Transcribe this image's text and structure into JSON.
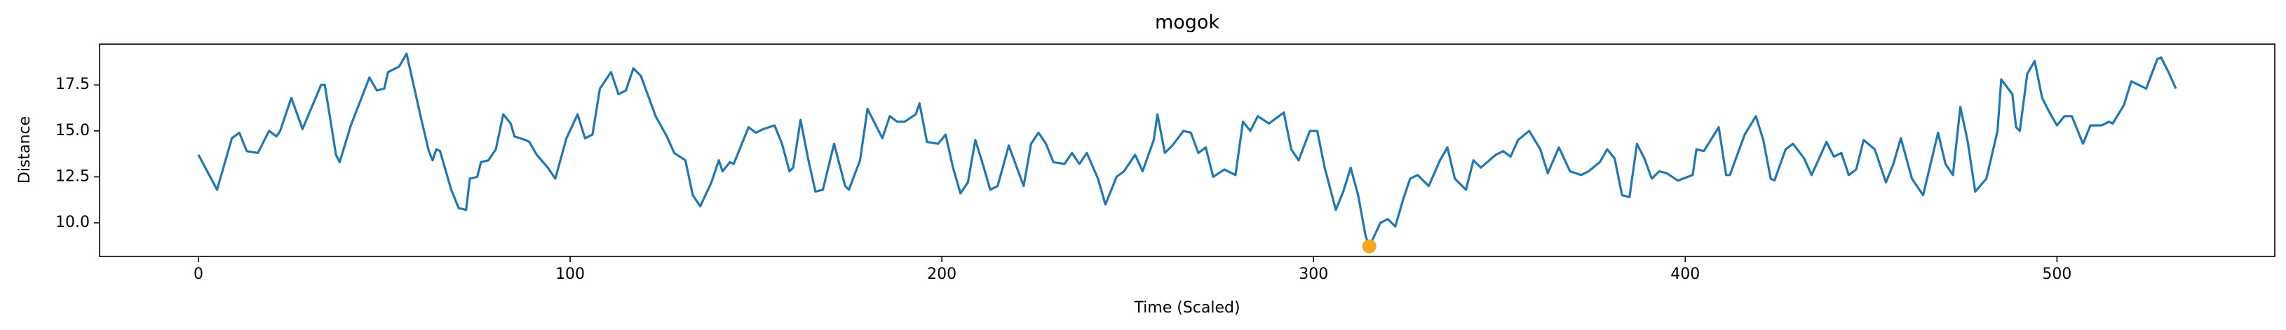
{
  "chart_data": {
    "type": "line",
    "title": "mogok",
    "x_label": "Time (Scaled)",
    "y_label": "Distance",
    "x": [
      0,
      5,
      9,
      11,
      13,
      16,
      19,
      21,
      22,
      25,
      28,
      33,
      34,
      37,
      38,
      41,
      46,
      48,
      50,
      51,
      54,
      56,
      60,
      62,
      63,
      64,
      65,
      68,
      70,
      72,
      73,
      75,
      76,
      78,
      80,
      82,
      84,
      85,
      88,
      89,
      91,
      94,
      96,
      99,
      102,
      104,
      106,
      108,
      111,
      113,
      115,
      117,
      119,
      123,
      126,
      128,
      131,
      133,
      135,
      138,
      140,
      141,
      143,
      144,
      148,
      150,
      152,
      155,
      157,
      159,
      160,
      162,
      164,
      166,
      168,
      171,
      174,
      175,
      178,
      180,
      184,
      186,
      188,
      190,
      193,
      194,
      196,
      199,
      201,
      203,
      205,
      207,
      209,
      211,
      213,
      215,
      218,
      222,
      224,
      226,
      228,
      230,
      233,
      235,
      237,
      239,
      242,
      244,
      247,
      249,
      252,
      254,
      257,
      258,
      260,
      262,
      265,
      267,
      269,
      271,
      273,
      276,
      279,
      281,
      283,
      285,
      288,
      292,
      294,
      296,
      299,
      301,
      303,
      306,
      308,
      310,
      312,
      314,
      315,
      318,
      320,
      322,
      324,
      326,
      328,
      331,
      334,
      336,
      338,
      341,
      343,
      345,
      349,
      351,
      353,
      355,
      358,
      361,
      363,
      366,
      369,
      372,
      374,
      377,
      379,
      381,
      383,
      385,
      387,
      389,
      391,
      393,
      395,
      398,
      402,
      403,
      405,
      409,
      411,
      412,
      416,
      419,
      421,
      423,
      424,
      427,
      429,
      432,
      434,
      438,
      440,
      442,
      444,
      446,
      448,
      451,
      454,
      456,
      458,
      461,
      464,
      468,
      470,
      472,
      474,
      476,
      478,
      481,
      484,
      485,
      488,
      489,
      490,
      492,
      494,
      496,
      498,
      500,
      502,
      504,
      507,
      509,
      512,
      514,
      515,
      518,
      520,
      522,
      524,
      527,
      528,
      530,
      532
    ],
    "values": [
      13.7,
      11.8,
      14.6,
      14.9,
      13.9,
      13.8,
      15.0,
      14.7,
      15.0,
      16.8,
      15.1,
      17.5,
      17.5,
      13.7,
      13.3,
      15.3,
      17.9,
      17.2,
      17.3,
      18.2,
      18.5,
      19.2,
      15.6,
      13.9,
      13.4,
      14.0,
      13.9,
      11.8,
      10.8,
      10.7,
      12.4,
      12.5,
      13.3,
      13.4,
      14.0,
      15.9,
      15.4,
      14.7,
      14.5,
      14.4,
      13.7,
      13.0,
      12.4,
      14.6,
      15.9,
      14.6,
      14.8,
      17.3,
      18.2,
      17.0,
      17.2,
      18.4,
      18.0,
      15.8,
      14.7,
      13.8,
      13.4,
      11.5,
      10.9,
      12.2,
      13.4,
      12.8,
      13.3,
      13.2,
      15.2,
      14.9,
      15.1,
      15.3,
      14.3,
      12.8,
      13.0,
      15.6,
      13.5,
      11.7,
      11.8,
      14.3,
      12.0,
      11.8,
      13.4,
      16.2,
      14.6,
      15.8,
      15.5,
      15.5,
      15.9,
      16.5,
      14.4,
      14.3,
      14.8,
      13.0,
      11.6,
      12.2,
      14.5,
      13.2,
      11.8,
      12.0,
      14.2,
      12.0,
      14.3,
      14.9,
      14.3,
      13.3,
      13.2,
      13.8,
      13.2,
      13.8,
      12.4,
      11.0,
      12.5,
      12.8,
      13.7,
      12.8,
      14.5,
      15.9,
      13.8,
      14.2,
      15.0,
      14.9,
      13.8,
      14.1,
      12.5,
      12.9,
      12.6,
      15.5,
      15.0,
      15.8,
      15.4,
      16.0,
      14.0,
      13.4,
      15.0,
      15.0,
      13.0,
      10.7,
      11.7,
      13.0,
      11.5,
      9.3,
      8.7,
      10.0,
      10.2,
      9.8,
      11.2,
      12.4,
      12.6,
      12.0,
      13.4,
      14.1,
      12.4,
      11.8,
      13.4,
      13.0,
      13.7,
      13.9,
      13.6,
      14.5,
      15.0,
      14.0,
      12.7,
      14.1,
      12.8,
      12.6,
      12.8,
      13.3,
      14.0,
      13.5,
      11.5,
      11.4,
      14.3,
      13.5,
      12.4,
      12.8,
      12.7,
      12.3,
      12.6,
      14.0,
      13.9,
      15.2,
      12.6,
      12.6,
      14.8,
      15.8,
      14.5,
      12.4,
      12.3,
      14.0,
      14.3,
      13.5,
      12.6,
      14.4,
      13.6,
      13.8,
      12.6,
      12.9,
      14.5,
      14.0,
      12.2,
      13.2,
      14.6,
      12.4,
      11.5,
      14.9,
      13.2,
      12.6,
      16.3,
      14.4,
      11.7,
      12.4,
      15.0,
      17.8,
      17.0,
      15.2,
      15.0,
      18.1,
      18.8,
      16.8,
      16.0,
      15.3,
      15.8,
      15.8,
      14.3,
      15.3,
      15.3,
      15.5,
      15.4,
      16.4,
      17.7,
      17.5,
      17.3,
      18.9,
      19.0,
      18.2,
      17.3
    ],
    "color": "#1f77b4",
    "highlight": {
      "x": 315,
      "y": 8.72,
      "color": "#f5a623"
    },
    "xlim": [
      -26.6,
      558.6
    ],
    "ylim": [
      8.17,
      19.72
    ],
    "xticks": [
      0,
      100,
      200,
      300,
      400,
      500
    ],
    "yticks": [
      {
        "value": 10,
        "label": "10.0"
      },
      {
        "value": 12.5,
        "label": "12.5"
      },
      {
        "value": 15,
        "label": "15.0"
      },
      {
        "value": 17.5,
        "label": "17.5"
      }
    ]
  }
}
